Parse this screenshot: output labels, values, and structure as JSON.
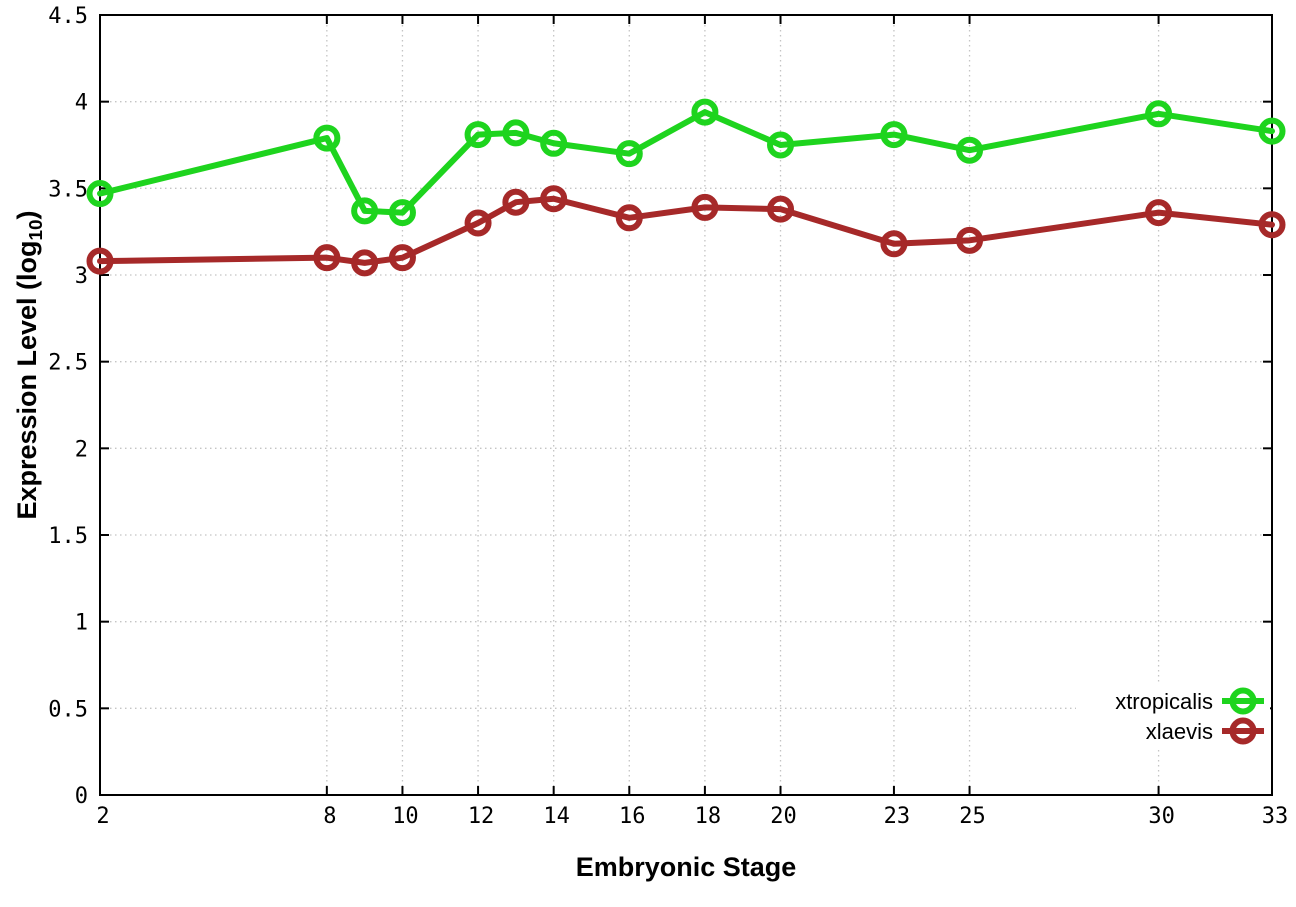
{
  "chart_data": {
    "type": "line",
    "title": "",
    "xlabel": "Embryonic Stage",
    "ylabel": "Expression Level (log10)",
    "ylabel_prefix": "Expression Level (log",
    "ylabel_sub": "10",
    "ylabel_suffix": ")",
    "x": [
      2,
      8,
      9,
      10,
      12,
      13,
      14,
      16,
      18,
      20,
      23,
      25,
      30,
      33
    ],
    "series": [
      {
        "name": "xtropicalis",
        "color": "#1ed41e",
        "values": [
          3.47,
          3.79,
          3.37,
          3.36,
          3.81,
          3.82,
          3.76,
          3.7,
          3.94,
          3.75,
          3.81,
          3.72,
          3.93,
          3.83
        ]
      },
      {
        "name": "xlaevis",
        "color": "#a62929",
        "values": [
          3.08,
          3.1,
          3.07,
          3.1,
          3.3,
          3.42,
          3.44,
          3.33,
          3.39,
          3.38,
          3.18,
          3.2,
          3.36,
          3.29
        ]
      }
    ],
    "xticks": [
      2,
      8,
      10,
      12,
      14,
      16,
      18,
      20,
      23,
      25,
      30,
      33
    ],
    "yticks": [
      0,
      0.5,
      1,
      1.5,
      2,
      2.5,
      3,
      3.5,
      4,
      4.5
    ],
    "xlim": [
      2,
      33
    ],
    "ylim": [
      0,
      4.5
    ],
    "grid": true,
    "grid_color": "#c4c4c4",
    "border_color": "#000000",
    "text_color": "#000000",
    "legend_position": "bottom-right",
    "legend_entries": [
      "xtropicalis",
      "xlaevis"
    ]
  }
}
